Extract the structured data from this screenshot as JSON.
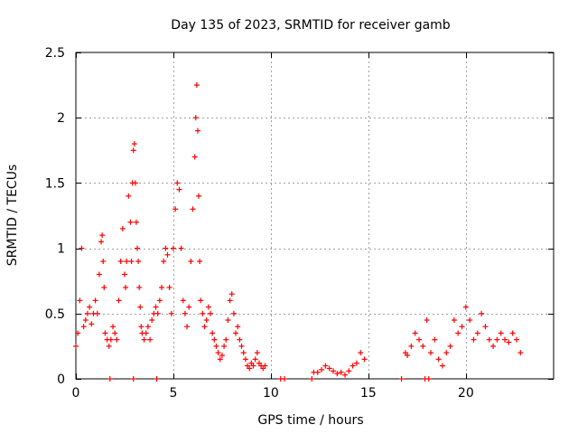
{
  "chart_data": {
    "type": "scatter",
    "title": "Day 135 of 2023, SRMTID for receiver gamb",
    "xlabel": "GPS time / hours",
    "ylabel": "SRMTID / TECUs",
    "xlim": [
      0,
      24.5
    ],
    "ylim": [
      0,
      2.5
    ],
    "x_ticks": [
      0,
      5,
      10,
      15,
      20
    ],
    "x_tick_labels": [
      "0",
      "5",
      "10",
      "15",
      "20"
    ],
    "y_ticks": [
      0,
      0.5,
      1,
      1.5,
      2,
      2.5
    ],
    "y_tick_labels": [
      "0",
      "0.5",
      "1",
      "1.5",
      "2",
      "2.5"
    ],
    "grid": true,
    "marker": "plus",
    "color": "#ff0000",
    "series": [
      {
        "name": "SRMTID",
        "x": [
          0.0,
          0.1,
          0.2,
          0.3,
          0.4,
          0.5,
          0.6,
          0.7,
          0.8,
          0.9,
          1.0,
          1.1,
          1.2,
          1.3,
          1.35,
          1.4,
          1.45,
          1.5,
          1.6,
          1.7,
          1.8,
          1.9,
          2.0,
          2.1,
          2.2,
          2.3,
          2.4,
          2.5,
          2.55,
          2.6,
          2.7,
          2.8,
          2.85,
          2.9,
          2.95,
          3.0,
          3.05,
          3.1,
          3.15,
          3.2,
          3.25,
          3.3,
          3.35,
          3.4,
          3.5,
          3.6,
          3.7,
          3.8,
          3.9,
          4.0,
          4.1,
          4.2,
          4.3,
          4.4,
          4.5,
          4.6,
          4.7,
          4.8,
          4.9,
          5.0,
          5.1,
          5.2,
          5.3,
          5.4,
          5.5,
          5.6,
          5.7,
          5.8,
          5.9,
          6.0,
          6.1,
          6.15,
          6.2,
          6.25,
          6.3,
          6.35,
          6.4,
          6.5,
          6.6,
          6.7,
          6.8,
          6.9,
          7.0,
          7.1,
          7.2,
          7.3,
          7.4,
          7.5,
          7.6,
          7.7,
          7.8,
          7.9,
          8.0,
          8.1,
          8.2,
          8.3,
          8.4,
          8.5,
          8.6,
          8.7,
          8.8,
          8.9,
          9.0,
          9.1,
          9.2,
          9.3,
          9.4,
          9.5,
          9.6,
          9.7,
          12.2,
          12.4,
          12.6,
          12.8,
          13.0,
          13.2,
          13.4,
          13.6,
          13.8,
          14.0,
          14.2,
          14.4,
          14.6,
          14.8,
          16.9,
          17.0,
          17.2,
          17.4,
          17.6,
          17.8,
          18.0,
          18.2,
          18.4,
          18.6,
          18.8,
          19.0,
          19.2,
          19.4,
          19.6,
          19.8,
          20.0,
          20.2,
          20.4,
          20.6,
          20.8,
          21.0,
          21.2,
          21.4,
          21.6,
          21.8,
          22.0,
          22.2,
          22.4,
          22.6,
          22.8,
          1.75,
          2.95,
          4.15,
          10.5,
          10.7,
          12.1,
          16.7,
          17.9,
          18.1
        ],
        "values": [
          0.25,
          0.35,
          0.6,
          1.0,
          0.4,
          0.45,
          0.5,
          0.55,
          0.42,
          0.5,
          0.6,
          0.5,
          0.8,
          1.05,
          1.1,
          0.9,
          0.7,
          0.35,
          0.3,
          0.25,
          0.3,
          0.4,
          0.35,
          0.3,
          0.6,
          0.9,
          1.15,
          0.8,
          0.7,
          0.9,
          1.4,
          1.2,
          0.9,
          1.5,
          1.75,
          1.8,
          1.5,
          1.2,
          1.0,
          0.9,
          0.7,
          0.55,
          0.4,
          0.35,
          0.3,
          0.35,
          0.4,
          0.3,
          0.45,
          0.5,
          0.55,
          0.5,
          0.6,
          0.7,
          0.9,
          1.0,
          0.95,
          0.7,
          0.5,
          1.0,
          1.3,
          1.5,
          1.45,
          1.0,
          0.6,
          0.5,
          0.4,
          0.55,
          0.9,
          1.3,
          1.7,
          2.0,
          2.25,
          1.9,
          1.4,
          0.9,
          0.6,
          0.5,
          0.4,
          0.45,
          0.55,
          0.5,
          0.35,
          0.3,
          0.25,
          0.2,
          0.15,
          0.18,
          0.25,
          0.3,
          0.45,
          0.6,
          0.65,
          0.5,
          0.35,
          0.4,
          0.3,
          0.25,
          0.2,
          0.15,
          0.1,
          0.08,
          0.12,
          0.1,
          0.15,
          0.2,
          0.12,
          0.1,
          0.08,
          0.1,
          0.05,
          0.05,
          0.07,
          0.1,
          0.08,
          0.06,
          0.04,
          0.05,
          0.03,
          0.06,
          0.1,
          0.12,
          0.2,
          0.15,
          0.2,
          0.18,
          0.25,
          0.35,
          0.3,
          0.25,
          0.45,
          0.2,
          0.3,
          0.15,
          0.1,
          0.2,
          0.25,
          0.45,
          0.35,
          0.4,
          0.55,
          0.45,
          0.3,
          0.35,
          0.5,
          0.4,
          0.3,
          0.25,
          0.3,
          0.35,
          0.3,
          0.28,
          0.35,
          0.3,
          0.2,
          0.0,
          0.0,
          0.0,
          0.0,
          0.0,
          0.0,
          0.0,
          0.0,
          0.0
        ]
      }
    ]
  }
}
